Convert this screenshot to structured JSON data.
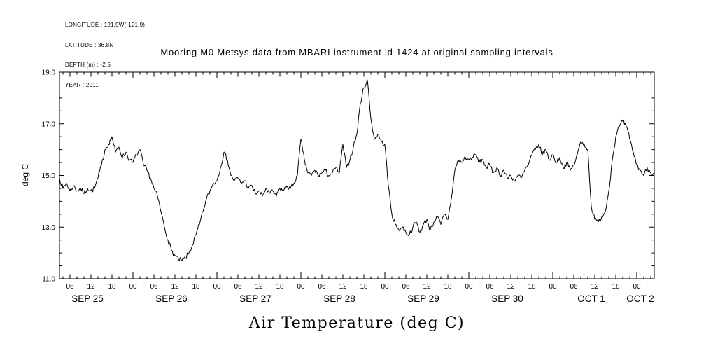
{
  "meta": {
    "longitude": "LONGITUDE : 121.9W(-121.9)",
    "latitude": "LATITUDE : 36.8N",
    "depth": "DEPTH (m) : -2.5",
    "year": "YEAR : 2011"
  },
  "chart_data": {
    "type": "line",
    "title": "Mooring M0 Metsys data from MBARI instrument id 1424 at original sampling intervals",
    "caption": "Air Temperature (deg C)",
    "ylabel": "deg C",
    "ylim": [
      11.0,
      19.0
    ],
    "yticks": [
      {
        "value": 11.0,
        "label": "11.0"
      },
      {
        "value": 13.0,
        "label": "13.0"
      },
      {
        "value": 15.0,
        "label": "15.0"
      },
      {
        "value": 17.0,
        "label": "17.0"
      },
      {
        "value": 19.0,
        "label": "19.0"
      }
    ],
    "ytick_minor_step": 0.5,
    "ytick_major_step": 2.0,
    "x_range_hours": [
      3,
      173
    ],
    "x_minor_tick_step": 2,
    "x_major_tick_step": 6,
    "x_hour_labels": [
      {
        "hour": 6,
        "label": "06"
      },
      {
        "hour": 12,
        "label": "12"
      },
      {
        "hour": 18,
        "label": "18"
      },
      {
        "hour": 24,
        "label": "00"
      },
      {
        "hour": 30,
        "label": "06"
      },
      {
        "hour": 36,
        "label": "12"
      },
      {
        "hour": 42,
        "label": "18"
      },
      {
        "hour": 48,
        "label": "00"
      },
      {
        "hour": 54,
        "label": "06"
      },
      {
        "hour": 60,
        "label": "12"
      },
      {
        "hour": 66,
        "label": "18"
      },
      {
        "hour": 72,
        "label": "00"
      },
      {
        "hour": 78,
        "label": "06"
      },
      {
        "hour": 84,
        "label": "12"
      },
      {
        "hour": 90,
        "label": "18"
      },
      {
        "hour": 96,
        "label": "00"
      },
      {
        "hour": 102,
        "label": "06"
      },
      {
        "hour": 108,
        "label": "12"
      },
      {
        "hour": 114,
        "label": "18"
      },
      {
        "hour": 120,
        "label": "00"
      },
      {
        "hour": 126,
        "label": "06"
      },
      {
        "hour": 132,
        "label": "12"
      },
      {
        "hour": 138,
        "label": "18"
      },
      {
        "hour": 144,
        "label": "00"
      },
      {
        "hour": 150,
        "label": "06"
      },
      {
        "hour": 156,
        "label": "12"
      },
      {
        "hour": 162,
        "label": "18"
      },
      {
        "hour": 168,
        "label": "00"
      }
    ],
    "day_labels": [
      {
        "hour": 11,
        "label": "SEP 25"
      },
      {
        "hour": 35,
        "label": "SEP 26"
      },
      {
        "hour": 59,
        "label": "SEP 27"
      },
      {
        "hour": 83,
        "label": "SEP 28"
      },
      {
        "hour": 107,
        "label": "SEP 29"
      },
      {
        "hour": 131,
        "label": "SEP 30"
      },
      {
        "hour": 155,
        "label": "OCT 1"
      },
      {
        "hour": 169,
        "label": "OCT 2"
      }
    ],
    "line_color": "#000000",
    "noise_amplitude": 0.1,
    "noise_seed": 7,
    "series": [
      {
        "name": "air_temperature_degC",
        "hours_start": 3,
        "hour_step": 1,
        "values": [
          14.9,
          14.5,
          14.7,
          14.4,
          14.6,
          14.4,
          14.5,
          14.3,
          14.5,
          14.4,
          14.5,
          14.9,
          15.4,
          16.0,
          16.2,
          16.5,
          15.9,
          16.1,
          15.7,
          15.9,
          15.6,
          15.5,
          15.8,
          16.0,
          15.4,
          15.2,
          14.9,
          14.5,
          14.2,
          13.6,
          13.0,
          12.5,
          12.1,
          11.9,
          11.75,
          11.7,
          11.8,
          12.0,
          12.3,
          12.7,
          13.1,
          13.6,
          14.1,
          14.4,
          14.7,
          14.8,
          15.3,
          15.9,
          15.6,
          15.0,
          14.8,
          14.9,
          14.7,
          14.8,
          14.5,
          14.6,
          14.3,
          14.4,
          14.2,
          14.5,
          14.3,
          14.4,
          14.2,
          14.5,
          14.4,
          14.6,
          14.5,
          14.7,
          15.0,
          16.4,
          15.6,
          15.1,
          15.0,
          15.2,
          15.0,
          15.1,
          15.2,
          15.0,
          15.1,
          15.3,
          15.1,
          16.2,
          15.3,
          15.6,
          16.1,
          16.6,
          17.8,
          18.4,
          18.7,
          17.2,
          16.4,
          16.6,
          16.3,
          16.2,
          14.6,
          13.5,
          13.1,
          12.9,
          13.0,
          12.8,
          12.7,
          13.0,
          13.2,
          12.8,
          13.1,
          13.3,
          12.9,
          13.2,
          13.4,
          13.1,
          13.5,
          13.3,
          14.1,
          15.2,
          15.6,
          15.5,
          15.7,
          15.6,
          15.7,
          15.8,
          15.5,
          15.6,
          15.3,
          15.4,
          15.1,
          15.3,
          15.0,
          15.2,
          14.9,
          15.0,
          14.8,
          15.0,
          14.9,
          15.2,
          15.4,
          15.8,
          16.0,
          16.2,
          15.8,
          16.0,
          15.6,
          15.8,
          15.5,
          15.7,
          15.3,
          15.5,
          15.2,
          15.4,
          15.8,
          16.3,
          16.2,
          16.0,
          13.8,
          13.3,
          13.2,
          13.4,
          13.6,
          14.4,
          15.6,
          16.5,
          16.9,
          17.1,
          16.9,
          16.4,
          15.9,
          15.4,
          15.2,
          15.0,
          15.3,
          15.1,
          15.1
        ]
      }
    ]
  }
}
